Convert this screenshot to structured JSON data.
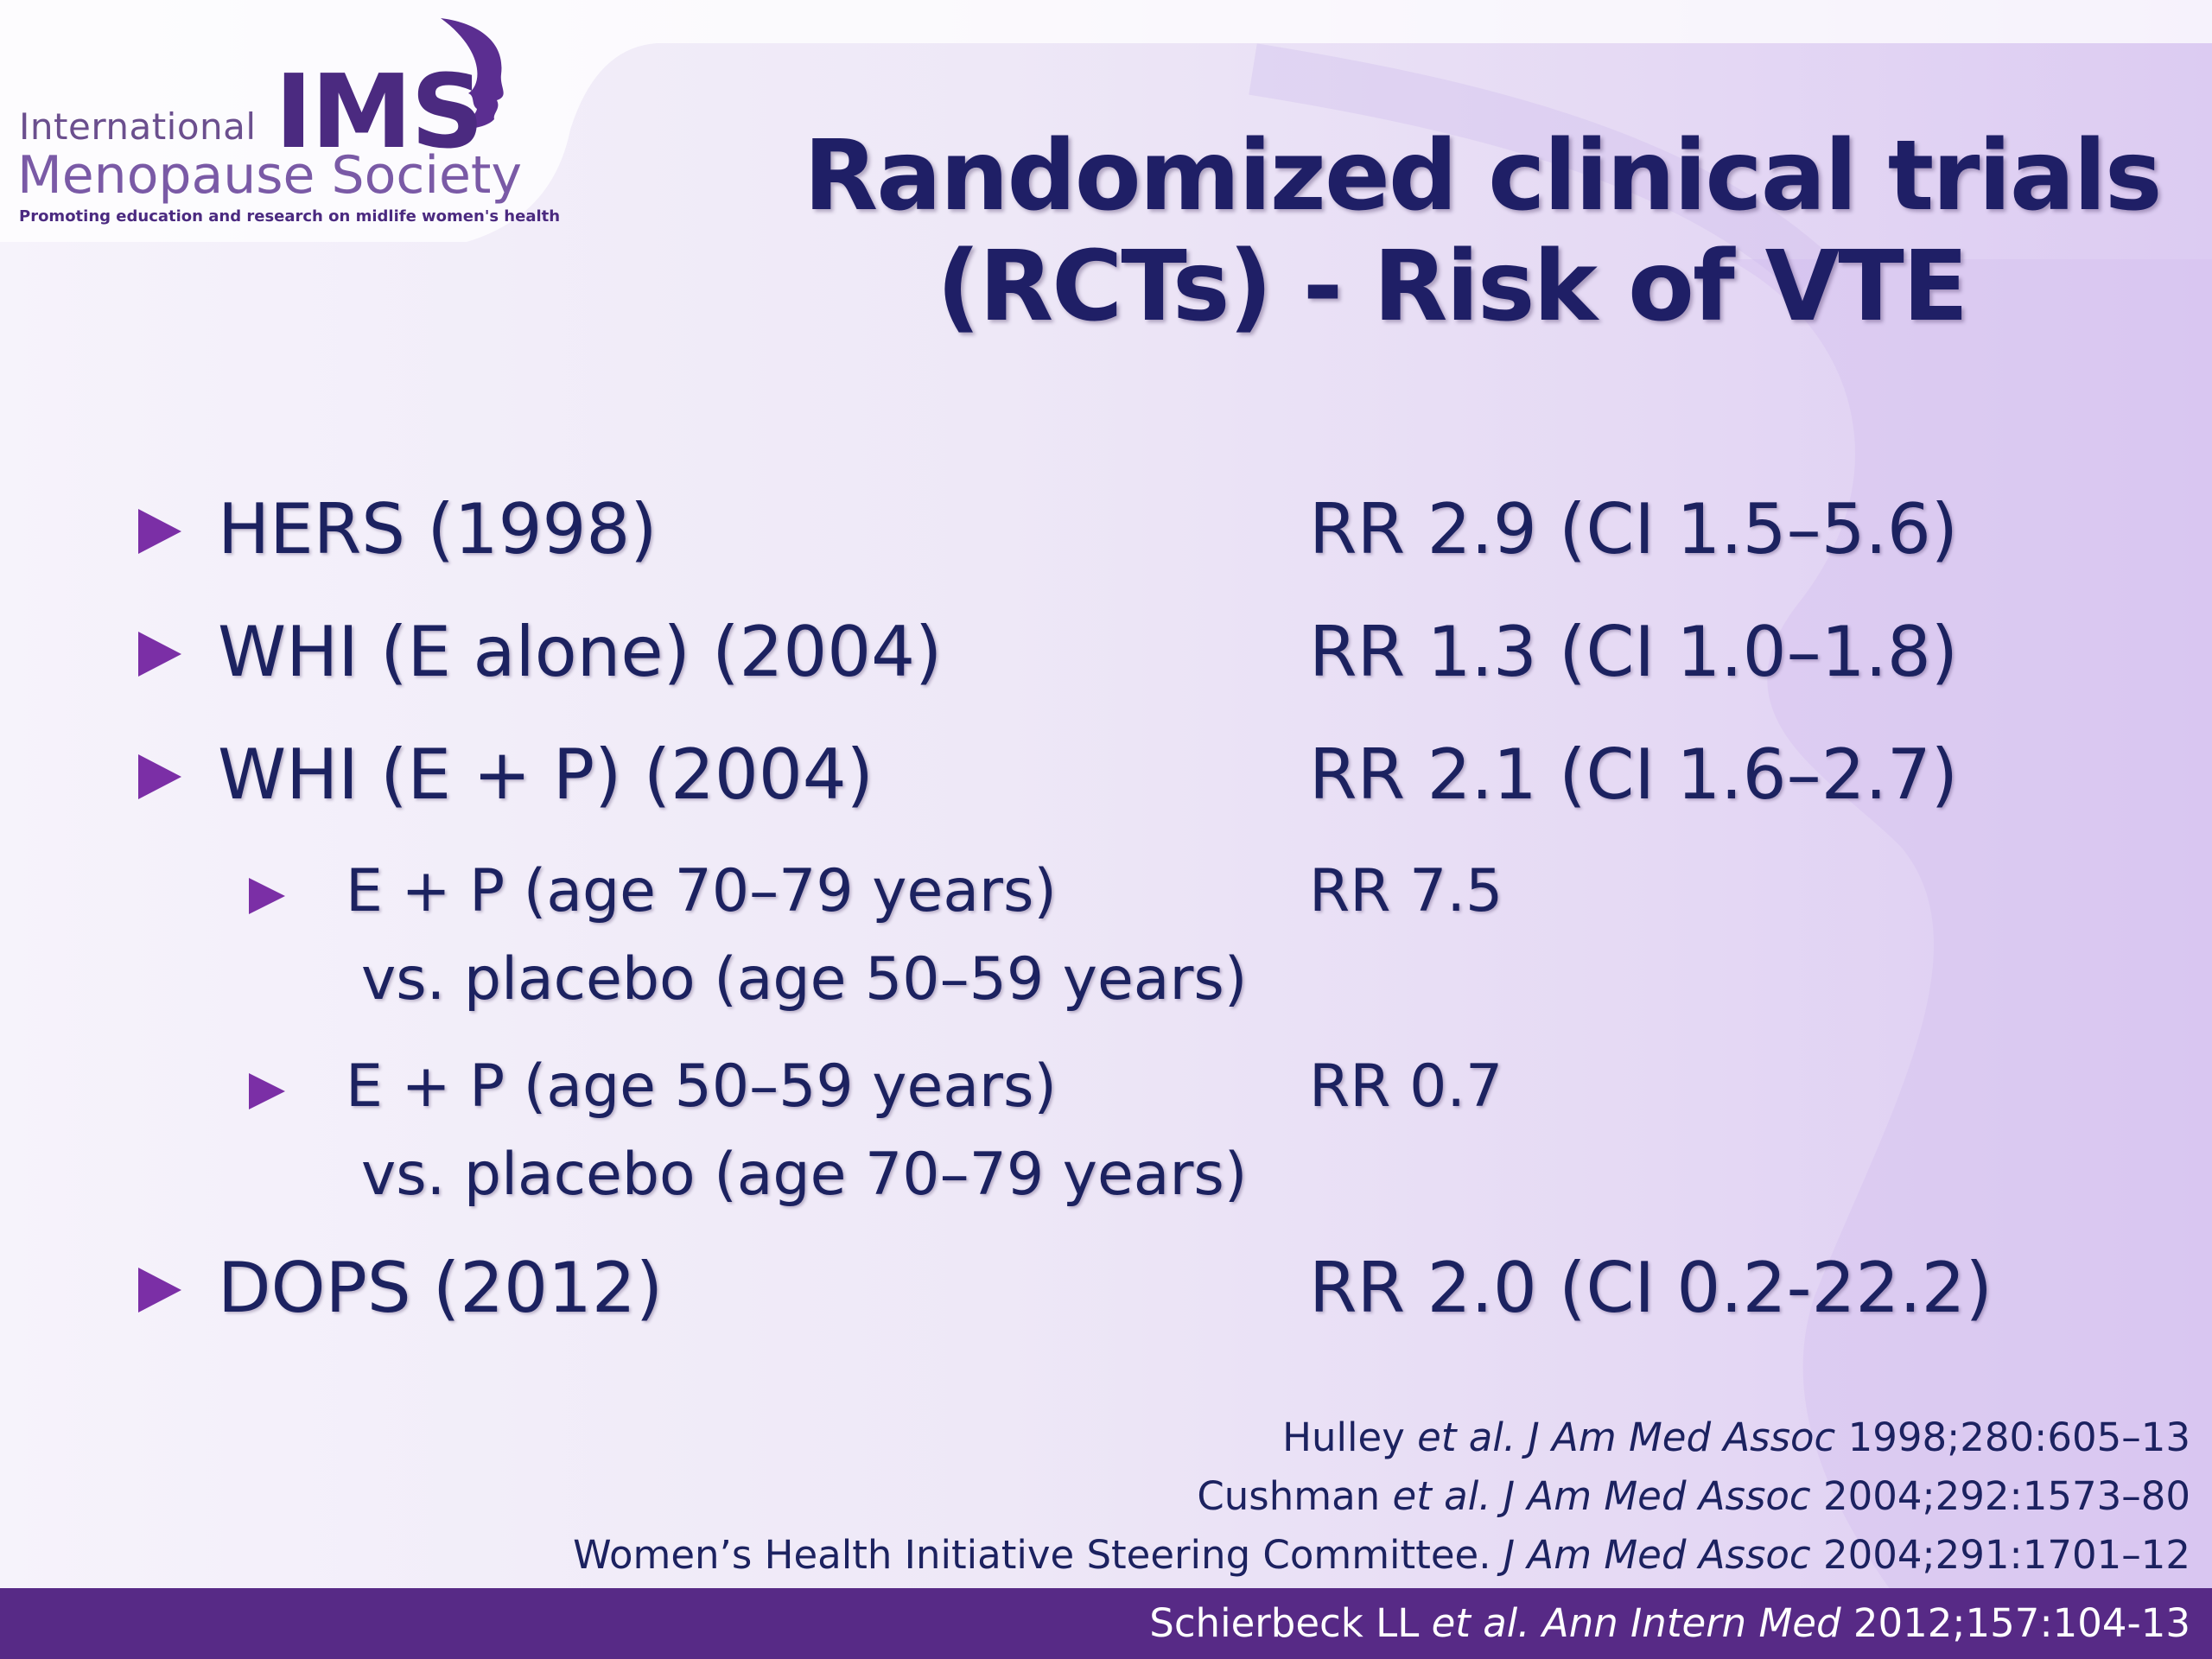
{
  "logo": {
    "word_international": "International",
    "word_ims": "IMS",
    "word_society": "Menopause Society",
    "tagline": "Promoting education and research on midlife women's health"
  },
  "title": {
    "line1": "Randomized clinical trials",
    "line2": "(RCTs) - Risk of VTE"
  },
  "rows": [
    {
      "label": "HERS (1998)",
      "value": "RR 2.9 (CI 1.5–5.6)"
    },
    {
      "label": "WHI (E alone) (2004)",
      "value": "RR 1.3 (CI 1.0–1.8)"
    },
    {
      "label": "WHI (E + P) (2004)",
      "value": "RR 2.1 (CI 1.6–2.7)"
    },
    {
      "label": "E + P (age 70–79 years)",
      "label2": "vs. placebo (age 50–59 years)",
      "value": "RR 7.5"
    },
    {
      "label": "E + P (age 50–59 years)",
      "label2": "vs. placebo (age 70–79 years)",
      "value": "RR 0.7"
    },
    {
      "label": "DOPS (2012)",
      "value": "RR 2.0 (CI  0.2-22.2)"
    }
  ],
  "references": [
    {
      "author": "Hulley ",
      "etal": "et al. ",
      "journal": "J Am Med Assoc",
      "cite": " 1998;280:605–13"
    },
    {
      "author": "Cushman ",
      "etal": "et al. ",
      "journal": "J Am Med Assoc",
      "cite": " 2004;292:1573–80"
    },
    {
      "author": "Women’s Health Initiative Steering Committee. ",
      "etal": "",
      "journal": "J Am Med Assoc",
      "cite": " 2004;291:1701–12"
    },
    {
      "author": "Schierbeck LL ",
      "etal": "et al. ",
      "journal": "Ann Intern Med",
      "cite": " 2012;157:104-13"
    }
  ],
  "colors": {
    "title": "#1f1f66",
    "text": "#1c2260",
    "bullet": "#7b2fa6",
    "footer_bar": "#572a86",
    "logo_dark": "#4b2a80"
  }
}
